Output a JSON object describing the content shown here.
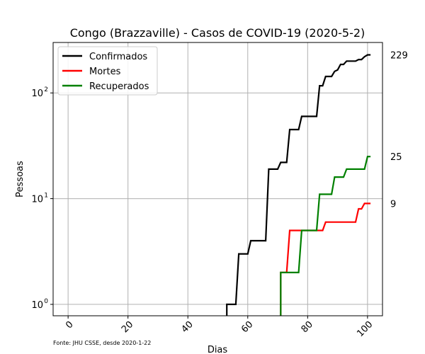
{
  "chart_data": {
    "type": "line",
    "title": "Congo (Brazzaville) - Casos de COVID-19 (2020-5-2)",
    "xlabel": "Dias",
    "ylabel": "Pessoas",
    "yscale": "log",
    "xlim": [
      -5,
      105
    ],
    "ylim": [
      0.78,
      300
    ],
    "xticks": [
      0,
      20,
      40,
      60,
      80,
      100
    ],
    "xtick_labels": [
      "0",
      "20",
      "40",
      "60",
      "80",
      "100"
    ],
    "yticks": [
      1,
      10,
      100
    ],
    "ytick_labels": [
      "10",
      "10",
      "10"
    ],
    "ytick_exponents": [
      "0",
      "1",
      "2"
    ],
    "grid": true,
    "legend_position": "top-left",
    "source_note": "Fonte: JHU CSSE, desde 2020-1-22",
    "series": [
      {
        "name": "Confirmados",
        "color": "#000000",
        "end_label": "229",
        "points": [
          [
            53,
            0.5
          ],
          [
            53,
            1
          ],
          [
            56,
            1
          ],
          [
            57,
            3
          ],
          [
            60,
            3
          ],
          [
            61,
            4
          ],
          [
            66,
            4
          ],
          [
            67,
            19
          ],
          [
            70,
            19
          ],
          [
            71,
            22
          ],
          [
            73,
            22
          ],
          [
            74,
            45
          ],
          [
            77,
            45
          ],
          [
            78,
            60
          ],
          [
            83,
            60
          ],
          [
            84,
            117
          ],
          [
            85,
            117
          ],
          [
            86,
            143
          ],
          [
            88,
            143
          ],
          [
            89,
            160
          ],
          [
            90,
            165
          ],
          [
            91,
            186
          ],
          [
            92,
            186
          ],
          [
            93,
            200
          ],
          [
            96,
            200
          ],
          [
            97,
            207
          ],
          [
            98,
            207
          ],
          [
            99,
            220
          ],
          [
            100,
            229
          ],
          [
            101,
            229
          ]
        ]
      },
      {
        "name": "Mortes",
        "color": "#ff0000",
        "end_label": "9",
        "points": [
          [
            71,
            0.5
          ],
          [
            71,
            2
          ],
          [
            73,
            2
          ],
          [
            74,
            5
          ],
          [
            85,
            5
          ],
          [
            86,
            6
          ],
          [
            96,
            6
          ],
          [
            97,
            8
          ],
          [
            98,
            8
          ],
          [
            99,
            9
          ],
          [
            101,
            9
          ]
        ]
      },
      {
        "name": "Recuperados",
        "color": "#008000",
        "end_label": "25",
        "points": [
          [
            71,
            0.5
          ],
          [
            71,
            2
          ],
          [
            77,
            2
          ],
          [
            78,
            5
          ],
          [
            83,
            5
          ],
          [
            84,
            11
          ],
          [
            88,
            11
          ],
          [
            89,
            16
          ],
          [
            92,
            16
          ],
          [
            93,
            19
          ],
          [
            99,
            19
          ],
          [
            100,
            25
          ],
          [
            101,
            25
          ]
        ]
      }
    ]
  }
}
